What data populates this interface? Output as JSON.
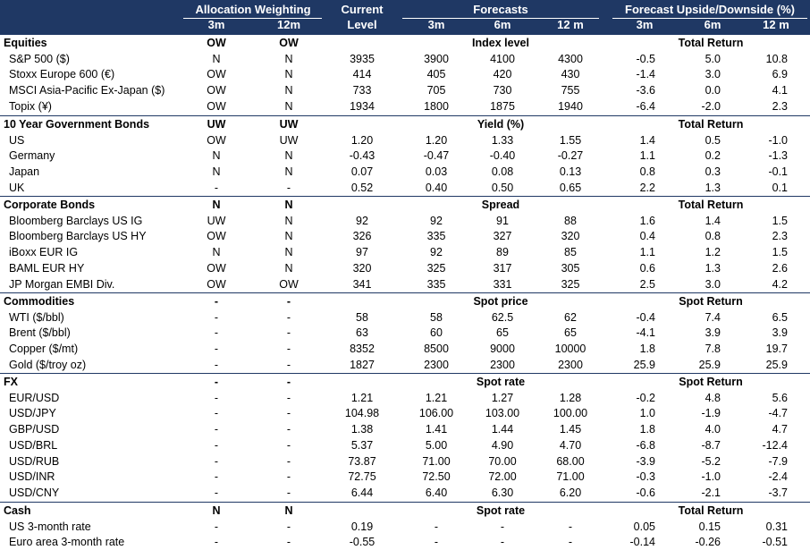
{
  "header": {
    "allocation": "Allocation Weighting",
    "current_line1": "Current",
    "current_line2": "Level",
    "forecasts": "Forecasts",
    "upside": "Forecast Upside/Downside (%)",
    "alloc_3m": "3m",
    "alloc_12m": "12m",
    "fc_3m": "3m",
    "fc_6m": "6m",
    "fc_12m": "12 m",
    "up_3m": "3m",
    "up_6m": "6m",
    "up_12m": "12 m"
  },
  "sections": [
    {
      "name": "Equities",
      "alloc_3m": "OW",
      "alloc_12m": "OW",
      "forecast_label": "Index level",
      "return_label": "Total Return",
      "rows": [
        {
          "name": "S&P 500 ($)",
          "a3": "N",
          "a12": "N",
          "cur": "3935",
          "f3": "3900",
          "f6": "4100",
          "f12": "4300",
          "u3": "-0.5",
          "u6": "5.0",
          "u12": "10.8"
        },
        {
          "name": "Stoxx Europe 600 (€)",
          "a3": "OW",
          "a12": "N",
          "cur": "414",
          "f3": "405",
          "f6": "420",
          "f12": "430",
          "u3": "-1.4",
          "u6": "3.0",
          "u12": "6.9"
        },
        {
          "name": "MSCI Asia-Pacific Ex-Japan ($)",
          "a3": "OW",
          "a12": "N",
          "cur": "733",
          "f3": "705",
          "f6": "730",
          "f12": "755",
          "u3": "-3.6",
          "u6": "0.0",
          "u12": "4.1"
        },
        {
          "name": "Topix (¥)",
          "a3": "OW",
          "a12": "N",
          "cur": "1934",
          "f3": "1800",
          "f6": "1875",
          "f12": "1940",
          "u3": "-6.4",
          "u6": "-2.0",
          "u12": "2.3"
        }
      ]
    },
    {
      "name": "10 Year Government Bonds",
      "alloc_3m": "UW",
      "alloc_12m": "UW",
      "forecast_label": "Yield (%)",
      "return_label": "Total Return",
      "rows": [
        {
          "name": "US",
          "a3": "OW",
          "a12": "UW",
          "cur": "1.20",
          "f3": "1.20",
          "f6": "1.33",
          "f12": "1.55",
          "u3": "1.4",
          "u6": "0.5",
          "u12": "-1.0"
        },
        {
          "name": "Germany",
          "a3": "N",
          "a12": "N",
          "cur": "-0.43",
          "f3": "-0.47",
          "f6": "-0.40",
          "f12": "-0.27",
          "u3": "1.1",
          "u6": "0.2",
          "u12": "-1.3"
        },
        {
          "name": "Japan",
          "a3": "N",
          "a12": "N",
          "cur": "0.07",
          "f3": "0.03",
          "f6": "0.08",
          "f12": "0.13",
          "u3": "0.8",
          "u6": "0.3",
          "u12": "-0.1"
        },
        {
          "name": "UK",
          "a3": "-",
          "a12": "-",
          "cur": "0.52",
          "f3": "0.40",
          "f6": "0.50",
          "f12": "0.65",
          "u3": "2.2",
          "u6": "1.3",
          "u12": "0.1"
        }
      ]
    },
    {
      "name": "Corporate Bonds",
      "alloc_3m": "N",
      "alloc_12m": "N",
      "forecast_label": "Spread",
      "return_label": "Total Return",
      "rows": [
        {
          "name": "Bloomberg Barclays US IG",
          "a3": "UW",
          "a12": "N",
          "cur": "92",
          "f3": "92",
          "f6": "91",
          "f12": "88",
          "u3": "1.6",
          "u6": "1.4",
          "u12": "1.5"
        },
        {
          "name": "Bloomberg Barclays US HY",
          "a3": "OW",
          "a12": "N",
          "cur": "326",
          "f3": "335",
          "f6": "327",
          "f12": "320",
          "u3": "0.4",
          "u6": "0.8",
          "u12": "2.3"
        },
        {
          "name": "iBoxx EUR IG",
          "a3": "N",
          "a12": "N",
          "cur": "97",
          "f3": "92",
          "f6": "89",
          "f12": "85",
          "u3": "1.1",
          "u6": "1.2",
          "u12": "1.5"
        },
        {
          "name": "BAML EUR HY",
          "a3": "OW",
          "a12": "N",
          "cur": "320",
          "f3": "325",
          "f6": "317",
          "f12": "305",
          "u3": "0.6",
          "u6": "1.3",
          "u12": "2.6"
        },
        {
          "name": "JP Morgan EMBI Div.",
          "a3": "OW",
          "a12": "OW",
          "cur": "341",
          "f3": "335",
          "f6": "331",
          "f12": "325",
          "u3": "2.5",
          "u6": "3.0",
          "u12": "4.2"
        }
      ]
    },
    {
      "name": "Commodities",
      "alloc_3m": "-",
      "alloc_12m": "-",
      "forecast_label": "Spot price",
      "return_label": "Spot Return",
      "rows": [
        {
          "name": "WTI  ($/bbl)",
          "a3": "-",
          "a12": "-",
          "cur": "58",
          "f3": "58",
          "f6": "62.5",
          "f12": "62",
          "u3": "-0.4",
          "u6": "7.4",
          "u12": "6.5"
        },
        {
          "name": "Brent  ($/bbl)",
          "a3": "-",
          "a12": "-",
          "cur": "63",
          "f3": "60",
          "f6": "65",
          "f12": "65",
          "u3": "-4.1",
          "u6": "3.9",
          "u12": "3.9"
        },
        {
          "name": "Copper ($/mt)",
          "a3": "-",
          "a12": "-",
          "cur": "8352",
          "f3": "8500",
          "f6": "9000",
          "f12": "10000",
          "u3": "1.8",
          "u6": "7.8",
          "u12": "19.7"
        },
        {
          "name": "Gold ($/troy oz)",
          "a3": "-",
          "a12": "-",
          "cur": "1827",
          "f3": "2300",
          "f6": "2300",
          "f12": "2300",
          "u3": "25.9",
          "u6": "25.9",
          "u12": "25.9"
        }
      ]
    },
    {
      "name": "FX",
      "alloc_3m": "-",
      "alloc_12m": "-",
      "forecast_label": "Spot rate",
      "return_label": "Spot Return",
      "rows": [
        {
          "name": "EUR/USD",
          "a3": "-",
          "a12": "-",
          "cur": "1.21",
          "f3": "1.21",
          "f6": "1.27",
          "f12": "1.28",
          "u3": "-0.2",
          "u6": "4.8",
          "u12": "5.6"
        },
        {
          "name": "USD/JPY",
          "a3": "-",
          "a12": "-",
          "cur": "104.98",
          "f3": "106.00",
          "f6": "103.00",
          "f12": "100.00",
          "u3": "1.0",
          "u6": "-1.9",
          "u12": "-4.7"
        },
        {
          "name": "GBP/USD",
          "a3": "-",
          "a12": "-",
          "cur": "1.38",
          "f3": "1.41",
          "f6": "1.44",
          "f12": "1.45",
          "u3": "1.8",
          "u6": "4.0",
          "u12": "4.7"
        },
        {
          "name": "USD/BRL",
          "a3": "-",
          "a12": "-",
          "cur": "5.37",
          "f3": "5.00",
          "f6": "4.90",
          "f12": "4.70",
          "u3": "-6.8",
          "u6": "-8.7",
          "u12": "-12.4"
        },
        {
          "name": "USD/RUB",
          "a3": "-",
          "a12": "-",
          "cur": "73.87",
          "f3": "71.00",
          "f6": "70.00",
          "f12": "68.00",
          "u3": "-3.9",
          "u6": "-5.2",
          "u12": "-7.9"
        },
        {
          "name": "USD/INR",
          "a3": "-",
          "a12": "-",
          "cur": "72.75",
          "f3": "72.50",
          "f6": "72.00",
          "f12": "71.00",
          "u3": "-0.3",
          "u6": "-1.0",
          "u12": "-2.4"
        },
        {
          "name": "USD/CNY",
          "a3": "-",
          "a12": "-",
          "cur": "6.44",
          "f3": "6.40",
          "f6": "6.30",
          "f12": "6.20",
          "u3": "-0.6",
          "u6": "-2.1",
          "u12": "-3.7"
        }
      ]
    },
    {
      "name": "Cash",
      "alloc_3m": "N",
      "alloc_12m": "N",
      "forecast_label": "Spot rate",
      "return_label": "Total Return",
      "rows": [
        {
          "name": "US 3-month rate",
          "a3": "-",
          "a12": "-",
          "cur": "0.19",
          "f3": "-",
          "f6": "-",
          "f12": "-",
          "u3": "0.05",
          "u6": "0.15",
          "u12": "0.31"
        },
        {
          "name": "Euro area 3-month rate",
          "a3": "-",
          "a12": "-",
          "cur": "-0.55",
          "f3": "-",
          "f6": "-",
          "f12": "-",
          "u3": "-0.14",
          "u6": "-0.26",
          "u12": "-0.51"
        }
      ]
    }
  ]
}
